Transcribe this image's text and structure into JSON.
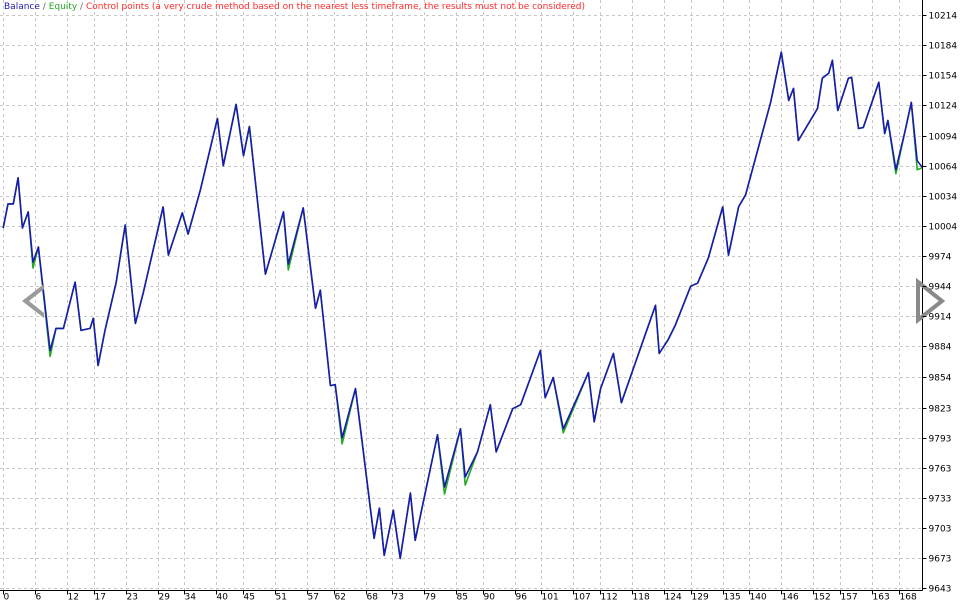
{
  "chart_data": {
    "type": "line",
    "legend_separator": "/",
    "control_points": {
      "label": "Control points (a very crude method based on the nearest less timeframe, the results must not be considered)",
      "color": "#ff2a2a"
    },
    "x": [
      0,
      0.9,
      1.9,
      2.8,
      3.6,
      4.7,
      5.6,
      6.6,
      8.8,
      9.9,
      11.3,
      13.5,
      14.6,
      16.3,
      16.9,
      17.8,
      19.1,
      21.2,
      22.9,
      24.8,
      26.3,
      30.0,
      31.0,
      33.6,
      34.7,
      37.0,
      40.2,
      41.3,
      43.7,
      45.1,
      46.2,
      49.2,
      52.6,
      53.5,
      56.3,
      58.6,
      59.5,
      61.4,
      62.3,
      63.6,
      66.1,
      69.6,
      70.6,
      71.5,
      73.2,
      74.5,
      76.4,
      77.3,
      81.5,
      82.8,
      85.8,
      86.7,
      89.0,
      91.4,
      92.5,
      95.6,
      97.1,
      100.8,
      101.7,
      103.2,
      105.1,
      109.8,
      110.9,
      112.1,
      114.5,
      116.0,
      122.4,
      123.1,
      124.8,
      126.1,
      129.0,
      130.3,
      132.3,
      135.0,
      136.1,
      138.0,
      139.3,
      144.0,
      146.0,
      147.4,
      148.3,
      149.2,
      152.8,
      153.7,
      154.9,
      155.6,
      156.6,
      158.6,
      159.2,
      160.5,
      161.4,
      164.3,
      165.4,
      166.0,
      167.5,
      169.3,
      170.4,
      171.5,
      172.5
    ],
    "series": [
      {
        "name": "Equity",
        "color": "#22aa22",
        "values": [
          10002,
          10026,
          10026,
          10052,
          10002,
          10018,
          9962,
          9983,
          9874,
          9902,
          9902,
          9948,
          9900,
          9902,
          9912,
          9865,
          9900,
          9948,
          10005,
          9907,
          9938,
          10023,
          9975,
          10017,
          9996,
          10040,
          10111,
          10064,
          10125,
          10074,
          10103,
          9956,
          10018,
          9960,
          10022,
          9922,
          9940,
          9845,
          9846,
          9787,
          9842,
          9693,
          9723,
          9676,
          9721,
          9673,
          9738,
          9691,
          9796,
          9737,
          9802,
          9746,
          9779,
          9826,
          9779,
          9822,
          9826,
          9880,
          9833,
          9853,
          9798,
          9858,
          9809,
          9842,
          9877,
          9828,
          9925,
          9877,
          9891,
          9905,
          9944,
          9947,
          9972,
          10023,
          9975,
          10023,
          10035,
          10127,
          10177,
          10129,
          10141,
          10089,
          10121,
          10151,
          10156,
          10169,
          10119,
          10151,
          10152,
          10101,
          10102,
          10147,
          10096,
          10109,
          10056,
          10100,
          10127,
          10060,
          10062
        ]
      },
      {
        "name": "Balance",
        "color": "#1a1ab0",
        "values": [
          10002,
          10026,
          10026,
          10052,
          10002,
          10018,
          9968,
          9983,
          9880,
          9902,
          9902,
          9948,
          9900,
          9902,
          9912,
          9865,
          9900,
          9948,
          10005,
          9907,
          9938,
          10023,
          9975,
          10017,
          9996,
          10040,
          10111,
          10064,
          10125,
          10074,
          10103,
          9956,
          10018,
          9966,
          10022,
          9922,
          9940,
          9845,
          9846,
          9793,
          9842,
          9693,
          9723,
          9676,
          9721,
          9673,
          9738,
          9691,
          9796,
          9744,
          9802,
          9754,
          9779,
          9826,
          9779,
          9822,
          9826,
          9880,
          9833,
          9853,
          9802,
          9858,
          9809,
          9842,
          9877,
          9828,
          9925,
          9877,
          9891,
          9905,
          9944,
          9947,
          9972,
          10023,
          9975,
          10023,
          10035,
          10127,
          10177,
          10129,
          10141,
          10089,
          10121,
          10151,
          10156,
          10169,
          10119,
          10151,
          10152,
          10101,
          10102,
          10147,
          10096,
          10109,
          10060,
          10100,
          10127,
          10069,
          10062
        ]
      }
    ],
    "xlim": [
      -0.6,
      172.5
    ],
    "xticks": [
      0,
      6,
      12,
      17,
      23,
      29,
      34,
      40,
      45,
      51,
      57,
      62,
      68,
      73,
      79,
      85,
      90,
      96,
      101,
      107,
      112,
      118,
      124,
      129,
      135,
      140,
      146,
      152,
      157,
      163,
      168
    ],
    "ylim": [
      9641,
      10229
    ],
    "yticks": [
      10214,
      10184,
      10154,
      10124,
      10094,
      10064,
      10034,
      10004,
      9974,
      9944,
      9914,
      9884,
      9854,
      9823,
      9793,
      9763,
      9733,
      9703,
      9673,
      9643
    ],
    "grid": true
  }
}
